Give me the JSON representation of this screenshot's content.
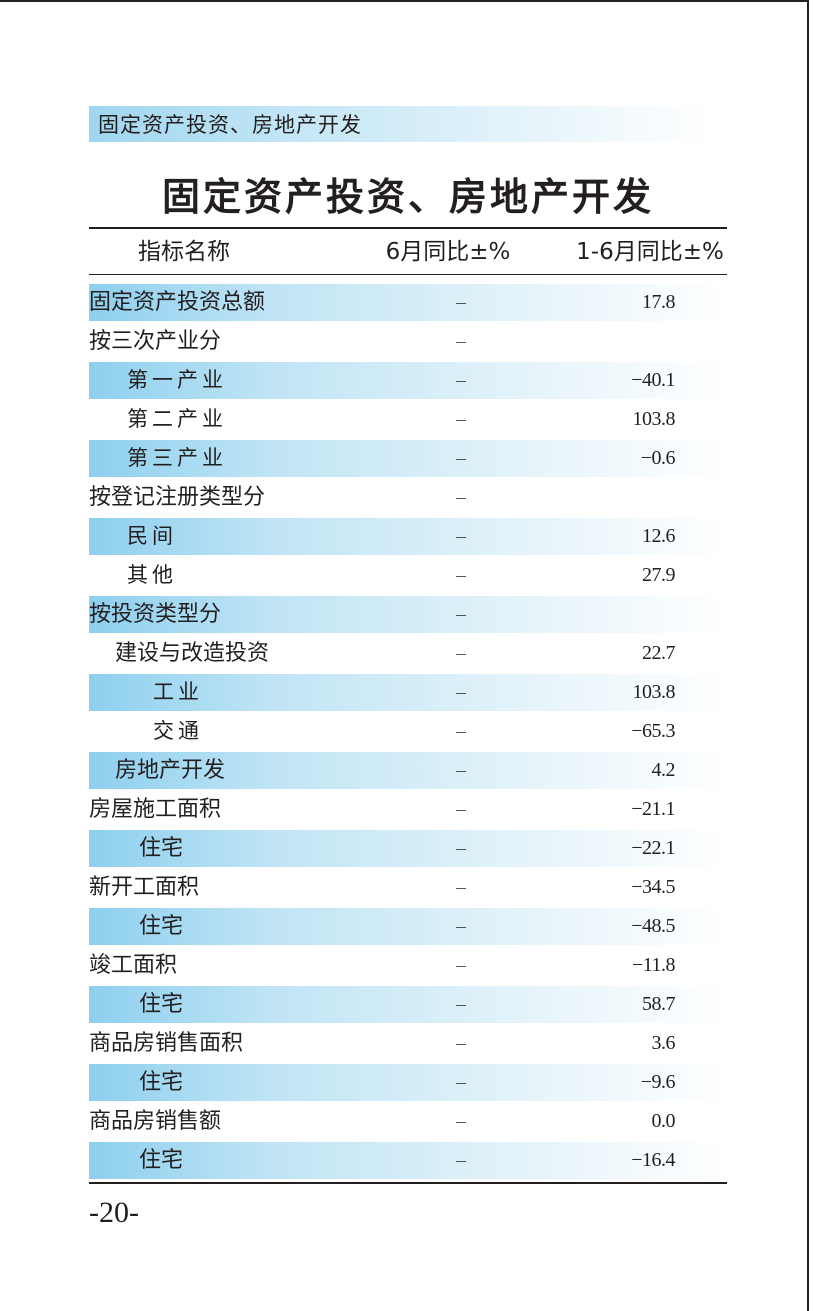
{
  "section_header": "固定资产投资、房地产开发",
  "title": "固定资产投资、房地产开发",
  "table": {
    "columns": [
      "指标名称",
      "6月同比±%",
      "1-6月同比±%"
    ],
    "rows": [
      {
        "name": "固定资产投资总额",
        "june": "–",
        "ytd": "17.8"
      },
      {
        "name": "按三次产业分",
        "june": "–",
        "ytd": ""
      },
      {
        "name": "第一产业",
        "june": "–",
        "ytd": "−40.1"
      },
      {
        "name": "第二产业",
        "june": "–",
        "ytd": "103.8"
      },
      {
        "name": "第三产业",
        "june": "–",
        "ytd": "−0.6"
      },
      {
        "name": "按登记注册类型分",
        "june": "–",
        "ytd": ""
      },
      {
        "name": "民间",
        "june": "–",
        "ytd": "12.6"
      },
      {
        "name": "其他",
        "june": "–",
        "ytd": "27.9"
      },
      {
        "name": "按投资类型分",
        "june": "–",
        "ytd": ""
      },
      {
        "name": "建设与改造投资",
        "june": "–",
        "ytd": "22.7"
      },
      {
        "name": "工业",
        "june": "–",
        "ytd": "103.8"
      },
      {
        "name": "交通",
        "june": "–",
        "ytd": "−65.3"
      },
      {
        "name": "房地产开发",
        "june": "–",
        "ytd": "4.2"
      },
      {
        "name": "房屋施工面积",
        "june": "–",
        "ytd": "−21.1"
      },
      {
        "name": "住宅",
        "june": "–",
        "ytd": "−22.1"
      },
      {
        "name": "新开工面积",
        "june": "–",
        "ytd": "−34.5"
      },
      {
        "name": "住宅",
        "june": "–",
        "ytd": "−48.5"
      },
      {
        "name": "竣工面积",
        "june": "–",
        "ytd": "−11.8"
      },
      {
        "name": "住宅",
        "june": "–",
        "ytd": "58.7"
      },
      {
        "name": "商品房销售面积",
        "june": "–",
        "ytd": "3.6"
      },
      {
        "name": "住宅",
        "june": "–",
        "ytd": "−9.6"
      },
      {
        "name": "商品房销售额",
        "june": "–",
        "ytd": "0.0"
      },
      {
        "name": "住宅",
        "june": "–",
        "ytd": "−16.4"
      }
    ]
  },
  "page_number": "-20-"
}
